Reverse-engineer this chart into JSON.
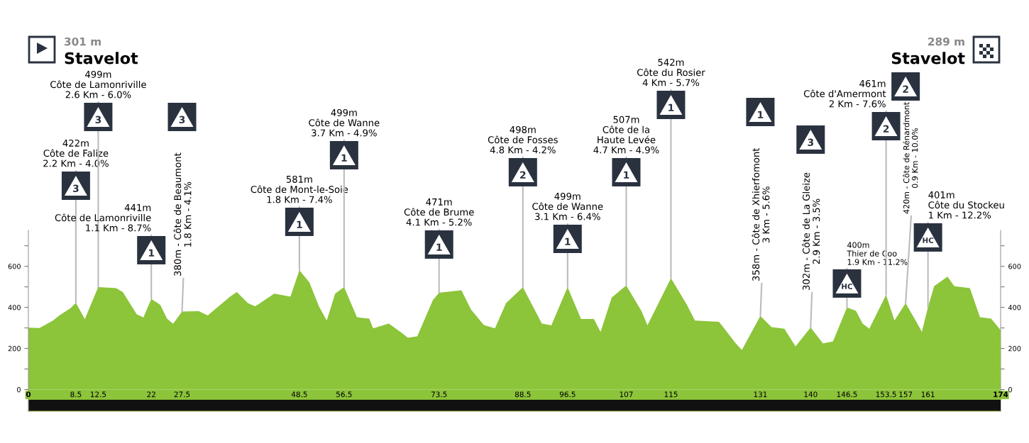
{
  "chart_data": {
    "type": "area",
    "x": [
      0,
      2,
      4.4,
      5.5,
      7.5,
      8.5,
      10.1,
      12.5,
      15.7,
      16.9,
      19.4,
      20.6,
      22,
      23.6,
      24.8,
      25.9,
      27.5,
      30.5,
      32.1,
      36.1,
      37.3,
      39.3,
      40.6,
      44,
      46.9,
      48.5,
      50.3,
      52,
      53.4,
      54.9,
      56.5,
      58.8,
      61,
      61.7,
      64.5,
      66.8,
      67.9,
      69.6,
      72.4,
      73.5,
      77.5,
      79.2,
      81.5,
      83.5,
      85.5,
      88.5,
      91.9,
      93.6,
      96.5,
      98.9,
      101.2,
      102.4,
      104.4,
      107,
      109.7,
      110.8,
      115,
      117.8,
      119.3,
      123.6,
      126.6,
      127.7,
      131,
      133,
      135.3,
      137.3,
      140,
      142.2,
      144,
      146.5,
      148.1,
      149.3,
      150.5,
      153.5,
      155,
      157,
      159.1,
      159.9,
      161,
      162.1,
      164.5,
      165.7,
      168.5,
      170.3,
      172.3,
      174
    ],
    "series": [
      {
        "color": "#8cc43a",
        "values": [
          301,
          300,
          336,
          360,
          395,
          422,
          343,
          499,
          494,
          475,
          366,
          351,
          441,
          413,
          345,
          320,
          380,
          382,
          361,
          452,
          475,
          420,
          405,
          467,
          452,
          581,
          521,
          405,
          336,
          467,
          499,
          352,
          345,
          298,
          321,
          276,
          252,
          259,
          436,
          471,
          483,
          390,
          314,
          298,
          421,
          498,
          321,
          313,
          499,
          344,
          344,
          281,
          448,
          507,
          383,
          313,
          542,
          415,
          336,
          330,
          225,
          193,
          358,
          304,
          296,
          210,
          302,
          225,
          234,
          400,
          383,
          321,
          296,
          461,
          336,
          420,
          321,
          281,
          401,
          503,
          550,
          503,
          494,
          352,
          345,
          289
        ]
      }
    ],
    "xlim": [
      0,
      174
    ],
    "xticks": [
      0,
      8.5,
      12.5,
      22,
      27.5,
      48.5,
      56.5,
      73.5,
      88.5,
      96.5,
      107,
      115,
      131,
      140,
      146.5,
      153.5,
      157,
      161,
      174
    ],
    "ylim": [
      -105,
      775
    ],
    "yticks": [
      0,
      {
        "value": 100,
        "label": null
      },
      200,
      {
        "value": 300,
        "label": null
      },
      400,
      {
        "value": 500,
        "label": null
      },
      600,
      {
        "value": 700,
        "label": null
      }
    ],
    "y2lim": [
      -105,
      775
    ],
    "y2ticks": [
      0,
      {
        "value": 100,
        "label": null
      },
      200,
      {
        "value": 300,
        "label": null
      },
      400,
      {
        "value": 500,
        "label": null
      },
      600,
      {
        "value": 700,
        "label": null
      }
    ],
    "annotations": [
      "301 m",
      "Stavelot",
      "289 m",
      "Stavelot",
      {
        "text": "422m\nCôte de Falize\n2.2 Km - 4.0%",
        "x": 8.5,
        "y": 422
      },
      "3",
      {
        "text": "499m\nCôte de Lamonriville\n2.6 Km - 6.0%",
        "x": 12.5,
        "y": 499
      },
      "3",
      {
        "text": "441m\nCôte de Lamonriville\n1.1 Km - 8.7%",
        "x": 22,
        "y": 441
      },
      "1",
      {
        "text": "380m - Côte de Beaumont\n1.8 Km - 4.1%",
        "x": 27.5,
        "y": 380
      },
      "3",
      {
        "text": "581m\nCôte de Mont-le-Soie\n1.8 Km - 7.4%",
        "x": 48.5,
        "y": 581
      },
      "1",
      {
        "text": "499m\nCôte de Wanne\n3.7 Km - 4.9%",
        "x": 56.5,
        "y": 499
      },
      "1",
      {
        "text": "471m\nCôte de Brume\n4.1 Km - 5.2%",
        "x": 73.5,
        "y": 471
      },
      "1",
      {
        "text": "498m\nCôte de Fosses\n4.8 Km - 4.2%",
        "x": 88.5,
        "y": 498
      },
      "2",
      {
        "text": "499m\nCôte de Wanne\n3.1 Km - 6.4%",
        "x": 96.5,
        "y": 499
      },
      "1",
      {
        "text": "507m\nCôte de la\nHaute Levée\n4.7 Km - 4.9%",
        "x": 107,
        "y": 507
      },
      "1",
      {
        "text": "542m\nCôte du Rosier\n4 Km - 5.7%",
        "x": 115,
        "y": 542
      },
      "1",
      {
        "text": "358m - Côte de Xhierfomont\n3 Km - 5.6%",
        "x": 131,
        "y": 358
      },
      "1",
      {
        "text": "302m - Côte de La Gleize\n2.9 Km - 3.5%",
        "x": 140,
        "y": 302
      },
      "3",
      {
        "text": "400m\nThier de Coo\n1.9 Km - 11.2%",
        "x": 146.5,
        "y": 400
      },
      "HC",
      {
        "text": "461m\nCôte d'Amermont\n2 Km - 7.6%",
        "x": 153.5,
        "y": 461
      },
      "2",
      {
        "text": "420m - Côte de Rénardmont\n0.9 Km - 10.0%",
        "x": 157,
        "y": 420
      },
      "2",
      {
        "text": "401m\nCôte du Stockeu\n1 Km - 12.2%",
        "x": 161,
        "y": 401
      },
      "HC"
    ]
  }
}
